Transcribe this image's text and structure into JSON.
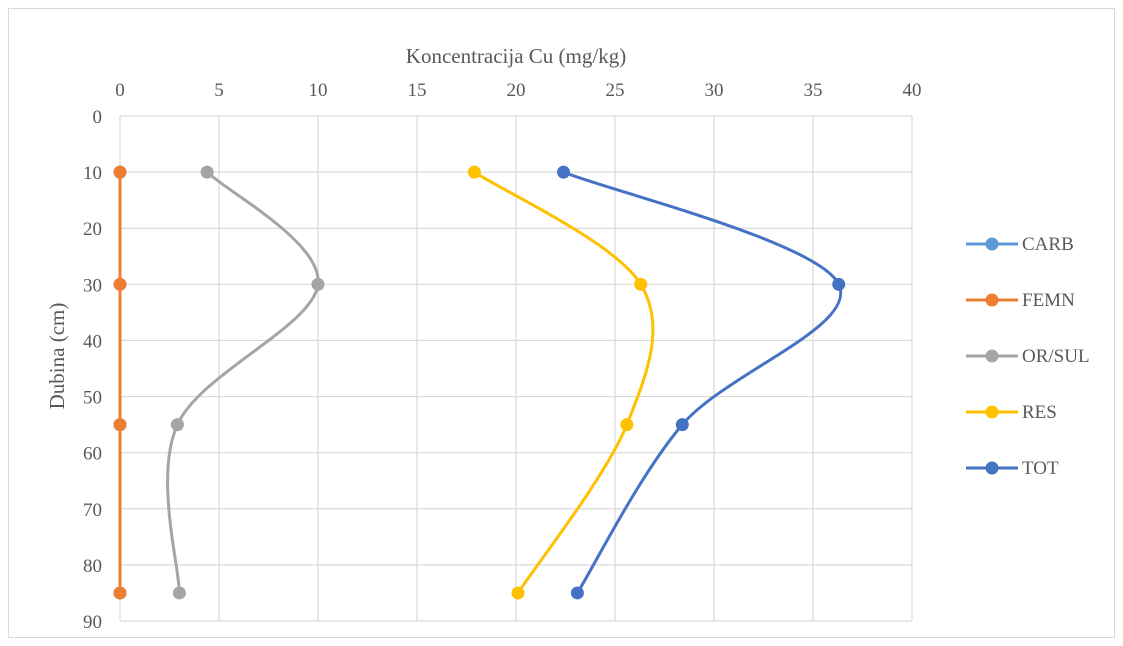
{
  "chart_data": {
    "type": "line",
    "orientation": "depth-profile",
    "title": "",
    "xlabel": "Koncentracija Cu (mg/kg)",
    "ylabel": "Dubina (cm)",
    "x_axis_position": "top",
    "y_axis_inverted": true,
    "xlim": [
      0,
      40
    ],
    "ylim": [
      0,
      90
    ],
    "x_ticks": [
      0,
      5,
      10,
      15,
      20,
      25,
      30,
      35,
      40
    ],
    "y_ticks": [
      0,
      10,
      20,
      30,
      40,
      50,
      60,
      70,
      80,
      90
    ],
    "grid": true,
    "smooth": true,
    "legend_position": "right",
    "depths": [
      10,
      30,
      55,
      85
    ],
    "series": [
      {
        "name": "CARB",
        "color": "#5b9bd5",
        "values": [
          0,
          0,
          0,
          0
        ]
      },
      {
        "name": "FEMN",
        "color": "#ed7d31",
        "values": [
          0,
          0,
          0,
          0
        ]
      },
      {
        "name": "OR/SUL",
        "color": "#a5a5a5",
        "values": [
          4.4,
          10.0,
          2.9,
          3.0
        ]
      },
      {
        "name": "RES",
        "color": "#ffc000",
        "values": [
          17.9,
          26.3,
          25.6,
          20.1
        ]
      },
      {
        "name": "TOT",
        "color": "#4472c4",
        "values": [
          22.4,
          36.3,
          28.4,
          23.1
        ]
      }
    ]
  }
}
